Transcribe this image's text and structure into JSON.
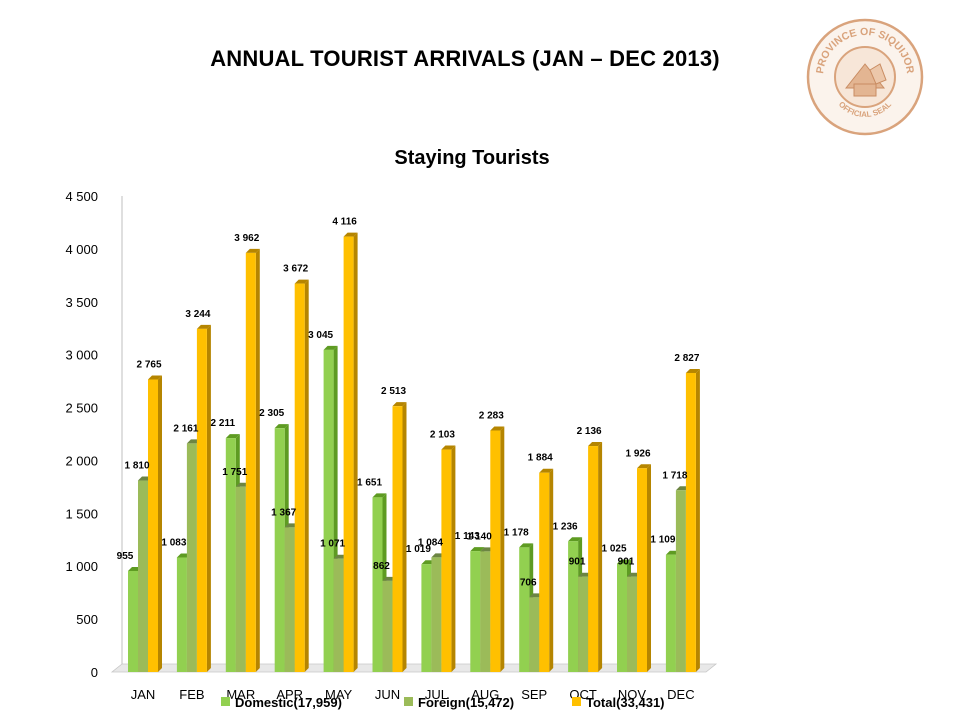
{
  "page": {
    "title": "ANNUAL TOURIST ARRIVALS (JAN – DEC 2013)"
  },
  "seal": {
    "top_text": "PROVINCE OF SIQUIJOR",
    "bottom_text": "OFFICIAL SEAL",
    "color": "#d9a37c"
  },
  "chart_data": {
    "type": "bar",
    "title": "Staying Tourists",
    "xlabel": "",
    "ylabel": "",
    "categories": [
      "JAN",
      "FEB",
      "MAR",
      "APR",
      "MAY",
      "JUN",
      "JUL",
      "AUG",
      "SEP",
      "OCT",
      "NOV",
      "DEC"
    ],
    "ylim": [
      0,
      4500
    ],
    "yticks": [
      0,
      500,
      1000,
      1500,
      2000,
      2500,
      3000,
      3500,
      4000,
      4500
    ],
    "ytick_labels": [
      "0",
      "500",
      "1 000",
      "1 500",
      "2 000",
      "2 500",
      "3 000",
      "3 500",
      "4 000",
      "4 500"
    ],
    "grid": false,
    "legend_position": "bottom",
    "series": [
      {
        "name": "Domestic(17,959)",
        "color": "#92d050",
        "values": [
          955,
          1083,
          2211,
          2305,
          3045,
          1651,
          1019,
          1143,
          1178,
          1236,
          1025,
          1109
        ],
        "labels": [
          "955",
          "1 083",
          "2 211",
          "2 305",
          "3 045",
          "1 651",
          "1 019",
          "1 143",
          "1 178",
          "1 236",
          "1 025",
          "1 109"
        ]
      },
      {
        "name": "Foreign(15,472)",
        "color": "#9bbb59",
        "values": [
          1810,
          2161,
          1751,
          1367,
          1071,
          862,
          1084,
          1140,
          706,
          901,
          901,
          1718
        ],
        "labels": [
          "1 810",
          "2 161",
          "1 751",
          "1 367",
          "1 071",
          "862",
          "1 084",
          "1 140",
          "706",
          "901",
          "901",
          "1 718"
        ]
      },
      {
        "name": "Total(33,431)",
        "color": "#ffc000",
        "values": [
          2765,
          3244,
          3962,
          3672,
          4116,
          2513,
          2103,
          2283,
          1884,
          2136,
          1926,
          2827
        ],
        "labels": [
          "2 765",
          "3 244",
          "3 962",
          "3 672",
          "4 116",
          "2 513",
          "2 103",
          "2 283",
          "1 884",
          "2 136",
          "1 926",
          "2 827"
        ]
      }
    ]
  }
}
